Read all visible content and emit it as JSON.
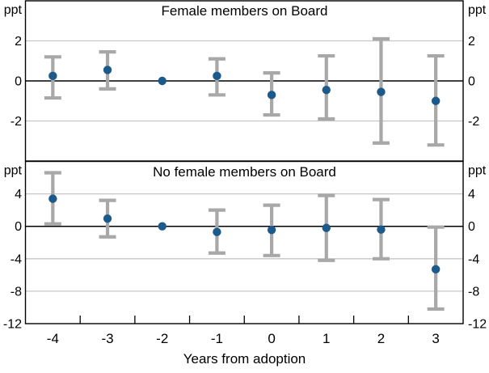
{
  "figure": {
    "unit_label": "ppt",
    "xlabel": "Years from adoption",
    "colors": {
      "point": "#1d5a8c",
      "error_bar": "#a8a8a8",
      "gridline": "#c6c6c6",
      "axis": "#000000",
      "background": "#ffffff"
    }
  },
  "x_axis": {
    "tick_labels": [
      "-4",
      "-3",
      "-2",
      "-1",
      "0",
      "1",
      "2",
      "3"
    ],
    "label": "Years from adoption"
  },
  "chart_data": [
    {
      "type": "scatter",
      "title": "Female members on Board",
      "ylabel": "ppt",
      "x": [
        -4,
        -3,
        -2,
        -1,
        0,
        1,
        2,
        3
      ],
      "points": [
        0.25,
        0.55,
        0.0,
        0.25,
        -0.7,
        -0.45,
        -0.55,
        -1.0
      ],
      "ci_low": [
        -0.85,
        -0.4,
        null,
        -0.7,
        -1.7,
        -1.9,
        -3.1,
        -3.2
      ],
      "ci_high": [
        1.2,
        1.45,
        null,
        1.1,
        0.4,
        1.25,
        2.1,
        1.25
      ],
      "ylim": [
        -4,
        4
      ],
      "ytick_values": [
        2,
        0,
        -2
      ],
      "ytick_labels": [
        "2",
        "0",
        "-2"
      ],
      "gridlines": [
        2,
        -2
      ],
      "zero_line": true,
      "legend": "none"
    },
    {
      "type": "scatter",
      "title": "No female members on Board",
      "ylabel": "ppt",
      "x": [
        -4,
        -3,
        -2,
        -1,
        0,
        1,
        2,
        3
      ],
      "points": [
        3.4,
        0.95,
        0.0,
        -0.7,
        -0.45,
        -0.2,
        -0.4,
        -5.3
      ],
      "ci_low": [
        0.3,
        -1.3,
        null,
        -3.3,
        -3.6,
        -4.2,
        -4.0,
        -10.2
      ],
      "ci_high": [
        6.6,
        3.2,
        null,
        2.0,
        2.6,
        3.8,
        3.3,
        -0.1
      ],
      "ylim": [
        -12,
        8
      ],
      "ytick_values": [
        4,
        0,
        -4,
        -8,
        -12
      ],
      "ytick_labels": [
        "4",
        "0",
        "-4",
        "-8",
        "-12"
      ],
      "gridlines": [
        4,
        -4,
        -8
      ],
      "zero_line": true,
      "legend": "none"
    }
  ]
}
